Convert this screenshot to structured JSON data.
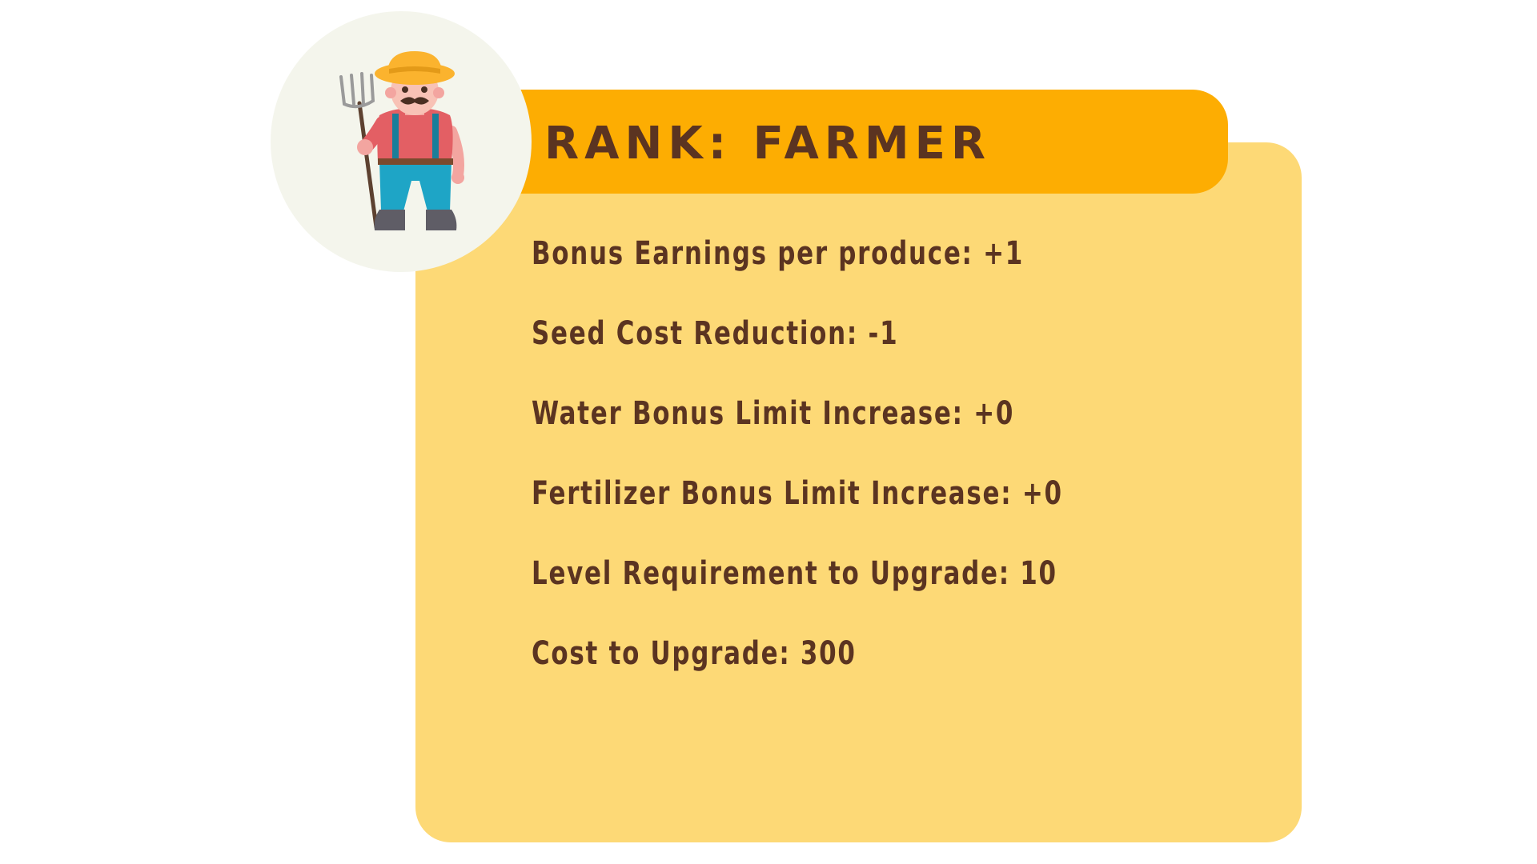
{
  "rank": {
    "title": "RANK: FARMER",
    "avatar_icon": "farmer-with-pitchfork-icon"
  },
  "stats": [
    {
      "label": "Bonus Earnings per produce: +1"
    },
    {
      "label": "Seed Cost Reduction: -1"
    },
    {
      "label": "Water Bonus Limit Increase: +0"
    },
    {
      "label": "Fertilizer Bonus Limit Increase: +0"
    },
    {
      "label": "Level Requirement to Upgrade: 10"
    },
    {
      "label": "Cost to Upgrade: 300"
    }
  ],
  "colors": {
    "card": "#fdd976",
    "banner": "#fdad02",
    "text": "#5b3421",
    "avatar_bg": "#f4f5ec"
  }
}
